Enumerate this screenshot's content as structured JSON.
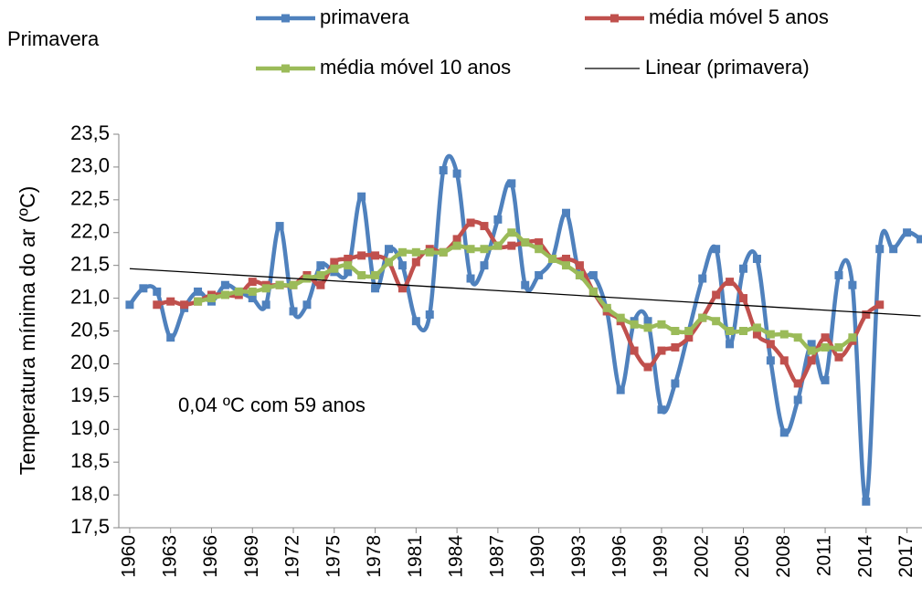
{
  "chart_data": {
    "type": "line",
    "title": "Primavera",
    "y_label": "Temperatura mínima do ar (ºC)",
    "annotation": "0,04 ºC com 59 anos",
    "x": [
      1960,
      1961,
      1962,
      1963,
      1964,
      1965,
      1966,
      1967,
      1968,
      1969,
      1970,
      1971,
      1972,
      1973,
      1974,
      1975,
      1976,
      1977,
      1978,
      1979,
      1980,
      1981,
      1982,
      1983,
      1984,
      1985,
      1986,
      1987,
      1988,
      1989,
      1990,
      1991,
      1992,
      1993,
      1994,
      1995,
      1996,
      1997,
      1998,
      1999,
      2000,
      2001,
      2002,
      2003,
      2004,
      2005,
      2006,
      2007,
      2008,
      2009,
      2010,
      2011,
      2012,
      2013,
      2014,
      2015,
      2016,
      2017,
      2018
    ],
    "xlim": [
      1959.2,
      2018.1
    ],
    "xticks": [
      1960,
      1963,
      1966,
      1969,
      1972,
      1975,
      1978,
      1981,
      1984,
      1987,
      1990,
      1993,
      1996,
      1999,
      2002,
      2005,
      2008,
      2011,
      2014,
      2017
    ],
    "ylim": [
      17.5,
      23.5
    ],
    "yticks": [
      {
        "value": 17.5,
        "label": "17,5"
      },
      {
        "value": 18,
        "label": "18,0"
      },
      {
        "value": 18.5,
        "label": "18,5"
      },
      {
        "value": 19,
        "label": "19,0"
      },
      {
        "value": 19.5,
        "label": "19,5"
      },
      {
        "value": 20,
        "label": "20,0"
      },
      {
        "value": 20.5,
        "label": "20,5"
      },
      {
        "value": 21,
        "label": "21,0"
      },
      {
        "value": 21.5,
        "label": "21,5"
      },
      {
        "value": 22,
        "label": "22,0"
      },
      {
        "value": 22.5,
        "label": "22,5"
      },
      {
        "value": 23,
        "label": "23,0"
      },
      {
        "value": 23.5,
        "label": "23,5"
      }
    ],
    "series": [
      {
        "name": "primavera",
        "color": "#4f81bd",
        "smooth": true,
        "values": [
          20.9,
          21.15,
          21.1,
          20.4,
          20.85,
          21.1,
          20.95,
          21.2,
          21.1,
          21.0,
          20.9,
          22.1,
          20.8,
          20.9,
          21.5,
          21.4,
          21.4,
          22.55,
          21.15,
          21.75,
          21.5,
          20.65,
          20.75,
          22.95,
          22.9,
          21.3,
          21.5,
          22.2,
          22.75,
          21.2,
          21.35,
          21.6,
          22.3,
          21.35,
          21.35,
          20.8,
          19.6,
          20.65,
          20.65,
          19.3,
          19.7,
          20.5,
          21.3,
          21.75,
          20.3,
          21.45,
          21.6,
          20.05,
          18.95,
          19.45,
          20.3,
          19.75,
          21.35,
          21.2,
          17.9,
          21.75,
          21.75,
          22.0,
          21.9
        ]
      },
      {
        "name": "média móvel 5 anos",
        "color": "#c0504d",
        "smooth": true,
        "values": [
          null,
          null,
          20.9,
          20.95,
          20.9,
          20.95,
          21.05,
          21.05,
          21.05,
          21.25,
          21.2,
          21.2,
          21.2,
          21.35,
          21.2,
          21.55,
          21.6,
          21.65,
          21.65,
          21.55,
          21.15,
          21.55,
          21.75,
          21.7,
          21.9,
          22.15,
          22.1,
          21.8,
          21.8,
          21.85,
          21.85,
          21.6,
          21.6,
          21.5,
          21.1,
          20.8,
          20.65,
          20.2,
          19.95,
          20.2,
          20.25,
          20.4,
          20.7,
          21.05,
          21.25,
          21.0,
          20.45,
          20.3,
          20.05,
          19.7,
          20.05,
          20.4,
          20.1,
          20.35,
          20.75,
          20.9,
          null,
          null,
          null
        ]
      },
      {
        "name": "média móvel 10 anos",
        "color": "#9bbb59",
        "smooth": true,
        "values": [
          null,
          null,
          null,
          null,
          null,
          20.95,
          21.0,
          21.05,
          21.1,
          21.1,
          21.15,
          21.2,
          21.2,
          21.3,
          21.35,
          21.45,
          21.5,
          21.35,
          21.35,
          21.55,
          21.7,
          21.7,
          21.7,
          21.7,
          21.8,
          21.75,
          21.75,
          21.8,
          22.0,
          21.85,
          21.75,
          21.6,
          21.5,
          21.35,
          21.1,
          20.85,
          20.7,
          20.6,
          20.55,
          20.6,
          20.5,
          20.5,
          20.7,
          20.65,
          20.5,
          20.5,
          20.55,
          20.45,
          20.45,
          20.4,
          20.2,
          20.25,
          20.25,
          20.4,
          null,
          null,
          null,
          null,
          null
        ]
      }
    ],
    "trendline": {
      "name": "Linear (primavera)",
      "color": "#000000",
      "x": [
        1960,
        2018
      ],
      "values": [
        21.45,
        20.73
      ]
    }
  }
}
